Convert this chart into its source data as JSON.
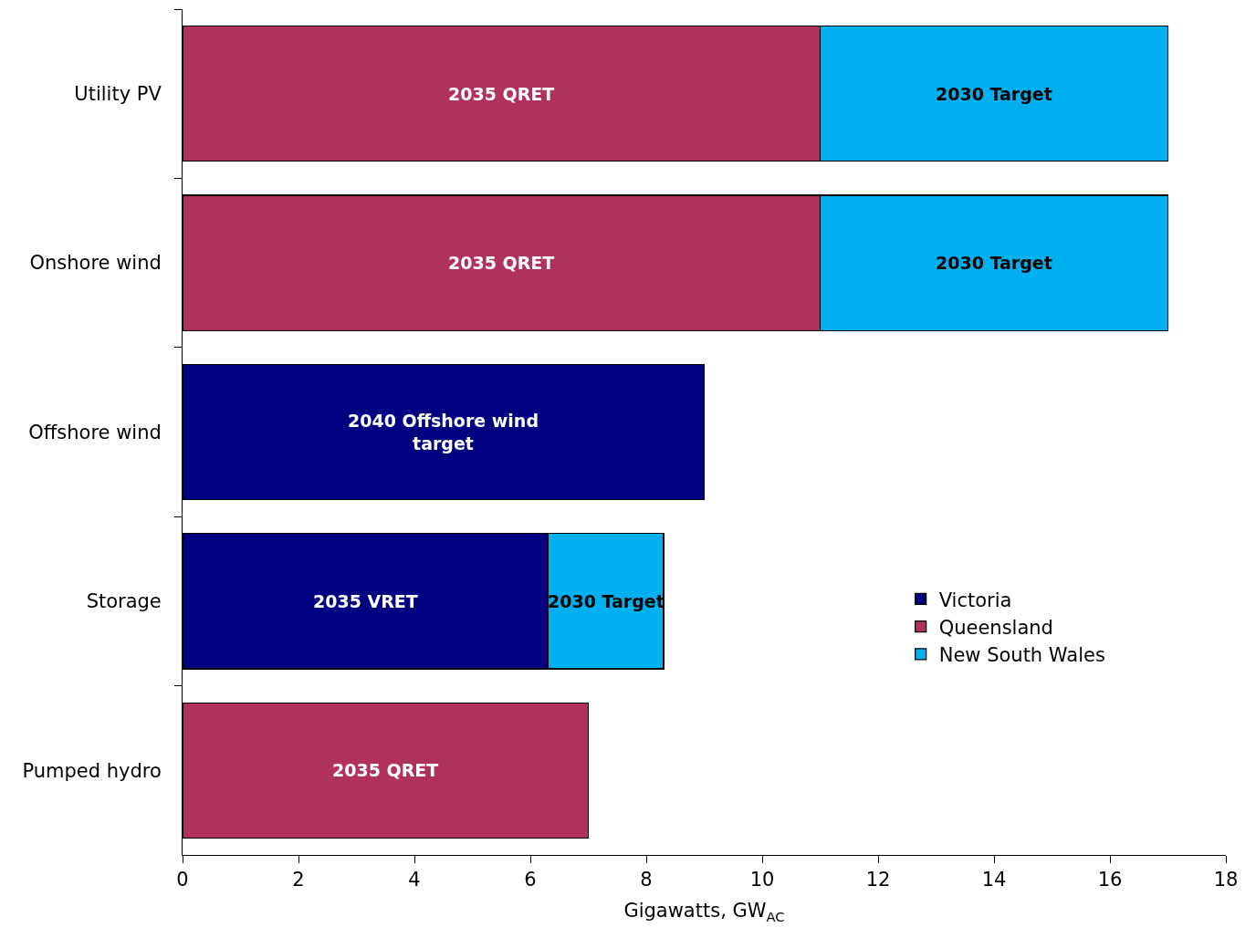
{
  "chart_data": {
    "type": "bar",
    "orientation": "horizontal",
    "stacked": true,
    "categories": [
      "Utility PV",
      "Onshore wind",
      "Offshore wind",
      "Storage",
      "Pumped hydro"
    ],
    "series": [
      {
        "name": "Victoria",
        "color": "#000080",
        "values": [
          null,
          null,
          9,
          6.3,
          null
        ]
      },
      {
        "name": "Queensland",
        "color": "#b0325a",
        "values": [
          11,
          11,
          null,
          null,
          7
        ]
      },
      {
        "name": "New South Wales",
        "color": "#00b0f0",
        "values": [
          6,
          6,
          null,
          2,
          null
        ]
      }
    ],
    "annotations": [
      "2035 QRET",
      "2030 Target",
      "2035 QRET",
      "2030 Target",
      "2040 Offshore wind\ntarget",
      "2035 VRET",
      "2030 Target",
      "2035 QRET"
    ],
    "xlabel": "Gigawatts, GW$_{AC}$",
    "xlim": [
      0,
      18
    ],
    "xticks": [
      0,
      2,
      4,
      6,
      8,
      10,
      12,
      14,
      16,
      18
    ],
    "grid": false,
    "legend": "right"
  }
}
